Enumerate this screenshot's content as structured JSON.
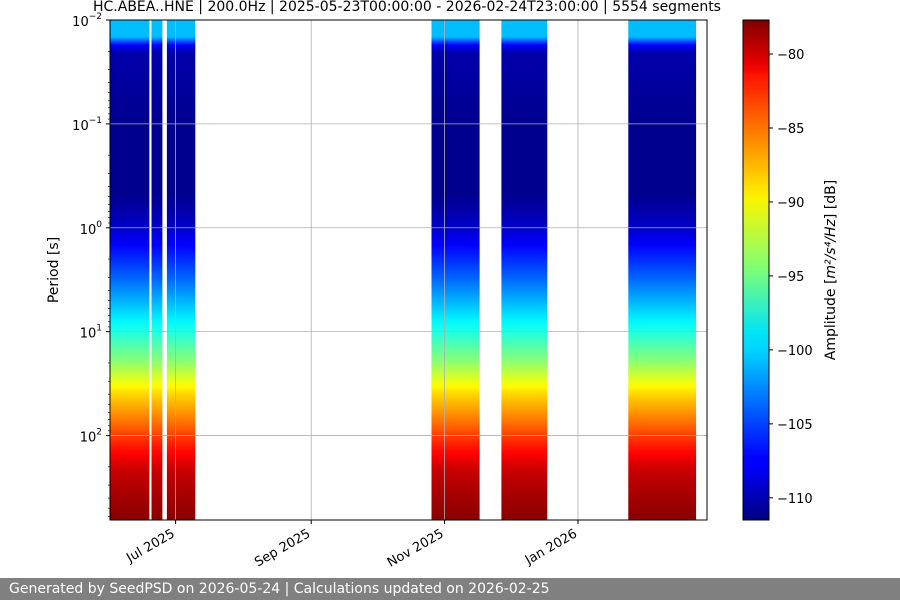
{
  "chart_data": {
    "type": "heatmap",
    "title": "HC.ABEA..HNE | 200.0Hz | 2025-05-23T00:00:00 - 2026-02-24T23:00:00 | 5554 segments",
    "xlabel": "",
    "ylabel": "Period [s]",
    "x_range": [
      "2025-06-01",
      "2026-03-01"
    ],
    "x_ticks": [
      {
        "date": "2025-07-01",
        "label": "Jul 2025"
      },
      {
        "date": "2025-09-01",
        "label": "Sep 2025"
      },
      {
        "date": "2025-11-01",
        "label": "Nov 2025"
      },
      {
        "date": "2026-01-01",
        "label": "Jan 2026"
      }
    ],
    "y_scale": "log",
    "y_inverted": true,
    "y_range": [
      0.01,
      650
    ],
    "y_ticks": [
      {
        "value": 0.01,
        "base": "10",
        "exp": "−2"
      },
      {
        "value": 0.1,
        "base": "10",
        "exp": "−1"
      },
      {
        "value": 1,
        "base": "10",
        "exp": "0"
      },
      {
        "value": 10,
        "base": "10",
        "exp": "1"
      },
      {
        "value": 100,
        "base": "10",
        "exp": "2"
      }
    ],
    "grid": true,
    "data_segments": [
      {
        "start": "2025-06-01",
        "end": "2025-06-19"
      },
      {
        "start": "2025-06-20",
        "end": "2025-06-25"
      },
      {
        "start": "2025-06-27",
        "end": "2025-07-10"
      },
      {
        "start": "2025-10-26",
        "end": "2025-11-17"
      },
      {
        "start": "2025-11-27",
        "end": "2025-12-18"
      },
      {
        "start": "2026-01-24",
        "end": "2026-02-24"
      }
    ],
    "amplitude_profile": [
      {
        "period": 0.01,
        "db": -101
      },
      {
        "period": 0.016,
        "db": -101
      },
      {
        "period": 0.018,
        "db": -110
      },
      {
        "period": 0.1,
        "db": -111
      },
      {
        "period": 0.5,
        "db": -111
      },
      {
        "period": 1,
        "db": -109
      },
      {
        "period": 3,
        "db": -104
      },
      {
        "period": 8,
        "db": -99
      },
      {
        "period": 20,
        "db": -94
      },
      {
        "period": 40,
        "db": -89
      },
      {
        "period": 70,
        "db": -86
      },
      {
        "period": 120,
        "db": -83
      },
      {
        "period": 220,
        "db": -80
      },
      {
        "period": 650,
        "db": -78
      }
    ],
    "colorbar": {
      "label_main": "Amplitude [",
      "label_unit": "m²/s⁴/Hz",
      "label_end": "] [dB]",
      "range": [
        -111.5,
        -77.7
      ],
      "ticks": [
        -80,
        -85,
        -90,
        -95,
        -100,
        -105,
        -110
      ],
      "tick_labels": [
        "−80",
        "−85",
        "−90",
        "−95",
        "−100",
        "−105",
        "−110"
      ],
      "colormap": "jet"
    }
  },
  "footer": {
    "text": "Generated by SeedPSD on 2026-05-24 | Calculations updated on 2026-02-25"
  },
  "colors": {
    "grid": "#b0b0b0",
    "footer_bg": "#808080"
  }
}
